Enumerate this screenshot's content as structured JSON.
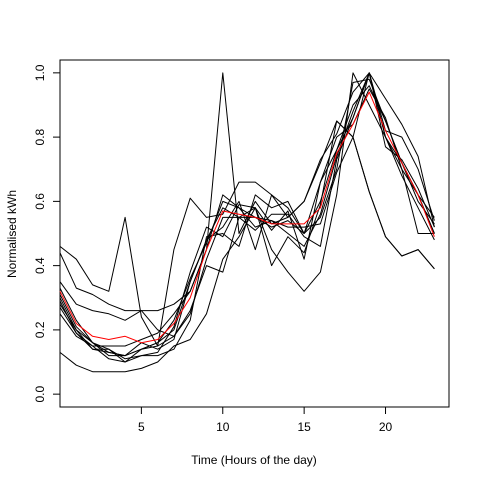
{
  "chart_data": {
    "type": "line",
    "title": "",
    "xlabel": "Time (Hours of the day)",
    "ylabel": "Normalised kWh",
    "xlim": [
      0,
      23.9
    ],
    "ylim": [
      -0.04,
      1.04
    ],
    "x_ticks": [
      5,
      10,
      15,
      20
    ],
    "y_ticks": [
      0.0,
      0.2,
      0.4,
      0.6,
      0.8,
      1.0
    ],
    "x_tick_labels": [
      "5",
      "10",
      "15",
      "20"
    ],
    "y_tick_labels": [
      "0.0",
      "0.2",
      "0.4",
      "0.6",
      "0.8",
      "1.0"
    ],
    "grid": false,
    "legend": "none",
    "x": [
      0,
      1,
      2,
      3,
      4,
      5,
      6,
      7,
      8,
      9,
      10,
      11,
      12,
      13,
      14,
      15,
      16,
      17,
      18,
      19,
      20,
      21,
      22,
      23
    ],
    "series": [
      {
        "color": "#000000",
        "values": [
          0.46,
          0.42,
          0.34,
          0.32,
          0.55,
          0.24,
          0.15,
          0.45,
          0.61,
          0.55,
          0.56,
          0.66,
          0.66,
          0.62,
          0.58,
          0.5,
          0.66,
          0.76,
          0.86,
          1.0,
          0.92,
          0.84,
          0.74,
          0.52
        ]
      },
      {
        "color": "#000000",
        "values": [
          0.44,
          0.33,
          0.31,
          0.28,
          0.26,
          0.26,
          0.26,
          0.28,
          0.32,
          0.45,
          1.0,
          0.5,
          0.6,
          0.53,
          0.55,
          0.6,
          0.73,
          0.81,
          0.94,
          1.0,
          0.82,
          0.8,
          0.7,
          0.54
        ]
      },
      {
        "color": "#000000",
        "values": [
          0.35,
          0.28,
          0.26,
          0.25,
          0.23,
          0.26,
          0.2,
          0.18,
          0.26,
          0.4,
          0.38,
          0.55,
          0.58,
          0.4,
          0.49,
          0.44,
          0.59,
          0.85,
          0.8,
          0.63,
          0.49,
          0.43,
          0.45,
          0.39
        ]
      },
      {
        "color": "#000000",
        "values": [
          0.33,
          0.23,
          0.16,
          0.13,
          0.12,
          0.16,
          0.14,
          0.17,
          0.35,
          0.48,
          0.52,
          0.6,
          0.45,
          0.62,
          0.55,
          0.6,
          0.72,
          0.85,
          0.8,
          0.63,
          0.49,
          0.43,
          0.45,
          0.39
        ]
      },
      {
        "color": "#000000",
        "values": [
          0.31,
          0.21,
          0.16,
          0.14,
          0.11,
          0.12,
          0.12,
          0.14,
          0.23,
          0.49,
          0.5,
          0.46,
          0.62,
          0.58,
          0.6,
          0.5,
          0.55,
          0.7,
          0.97,
          0.98,
          0.85,
          0.72,
          0.62,
          0.55
        ]
      },
      {
        "color": "#000000",
        "values": [
          0.3,
          0.2,
          0.14,
          0.13,
          0.12,
          0.14,
          0.16,
          0.2,
          0.35,
          0.48,
          0.58,
          0.55,
          0.55,
          0.54,
          0.52,
          0.52,
          0.53,
          0.69,
          0.8,
          1.0,
          0.8,
          0.7,
          0.62,
          0.5
        ]
      },
      {
        "color": "#000000",
        "values": [
          0.29,
          0.19,
          0.15,
          0.11,
          0.1,
          0.14,
          0.15,
          0.18,
          0.25,
          0.42,
          0.55,
          0.55,
          0.51,
          0.56,
          0.56,
          0.49,
          0.46,
          0.73,
          0.86,
          1.0,
          0.77,
          0.73,
          0.64,
          0.52
        ]
      },
      {
        "color": "#000000",
        "values": [
          0.28,
          0.2,
          0.16,
          0.12,
          0.12,
          0.14,
          0.16,
          0.23,
          0.36,
          0.47,
          0.6,
          0.58,
          0.55,
          0.52,
          0.54,
          0.5,
          0.6,
          0.76,
          0.9,
          0.96,
          0.85,
          0.72,
          0.62,
          0.5
        ]
      },
      {
        "color": "#000000",
        "values": [
          0.27,
          0.19,
          0.14,
          0.14,
          0.1,
          0.12,
          0.13,
          0.21,
          0.38,
          0.52,
          0.49,
          0.59,
          0.58,
          0.51,
          0.57,
          0.42,
          0.66,
          0.8,
          0.84,
          0.95,
          0.86,
          0.7,
          0.5,
          0.5
        ]
      },
      {
        "color": "#000000",
        "values": [
          0.25,
          0.18,
          0.15,
          0.15,
          0.15,
          0.17,
          0.19,
          0.25,
          0.32,
          0.45,
          0.62,
          0.58,
          0.52,
          0.54,
          0.5,
          0.46,
          0.56,
          0.74,
          0.88,
          1.0,
          0.8,
          0.68,
          0.58,
          0.48
        ]
      },
      {
        "color": "#000000",
        "values": [
          0.13,
          0.09,
          0.07,
          0.07,
          0.07,
          0.08,
          0.1,
          0.15,
          0.17,
          0.25,
          0.42,
          0.49,
          0.58,
          0.45,
          0.38,
          0.32,
          0.38,
          0.62,
          1.0,
          0.9,
          0.8,
          0.72,
          0.6,
          0.53
        ]
      },
      {
        "color": "#ff0000",
        "values": [
          0.32,
          0.22,
          0.18,
          0.17,
          0.18,
          0.16,
          0.17,
          0.22,
          0.3,
          0.45,
          0.57,
          0.56,
          0.55,
          0.53,
          0.53,
          0.53,
          0.58,
          0.75,
          0.84,
          0.94,
          0.82,
          0.72,
          0.62,
          0.49
        ]
      }
    ]
  }
}
